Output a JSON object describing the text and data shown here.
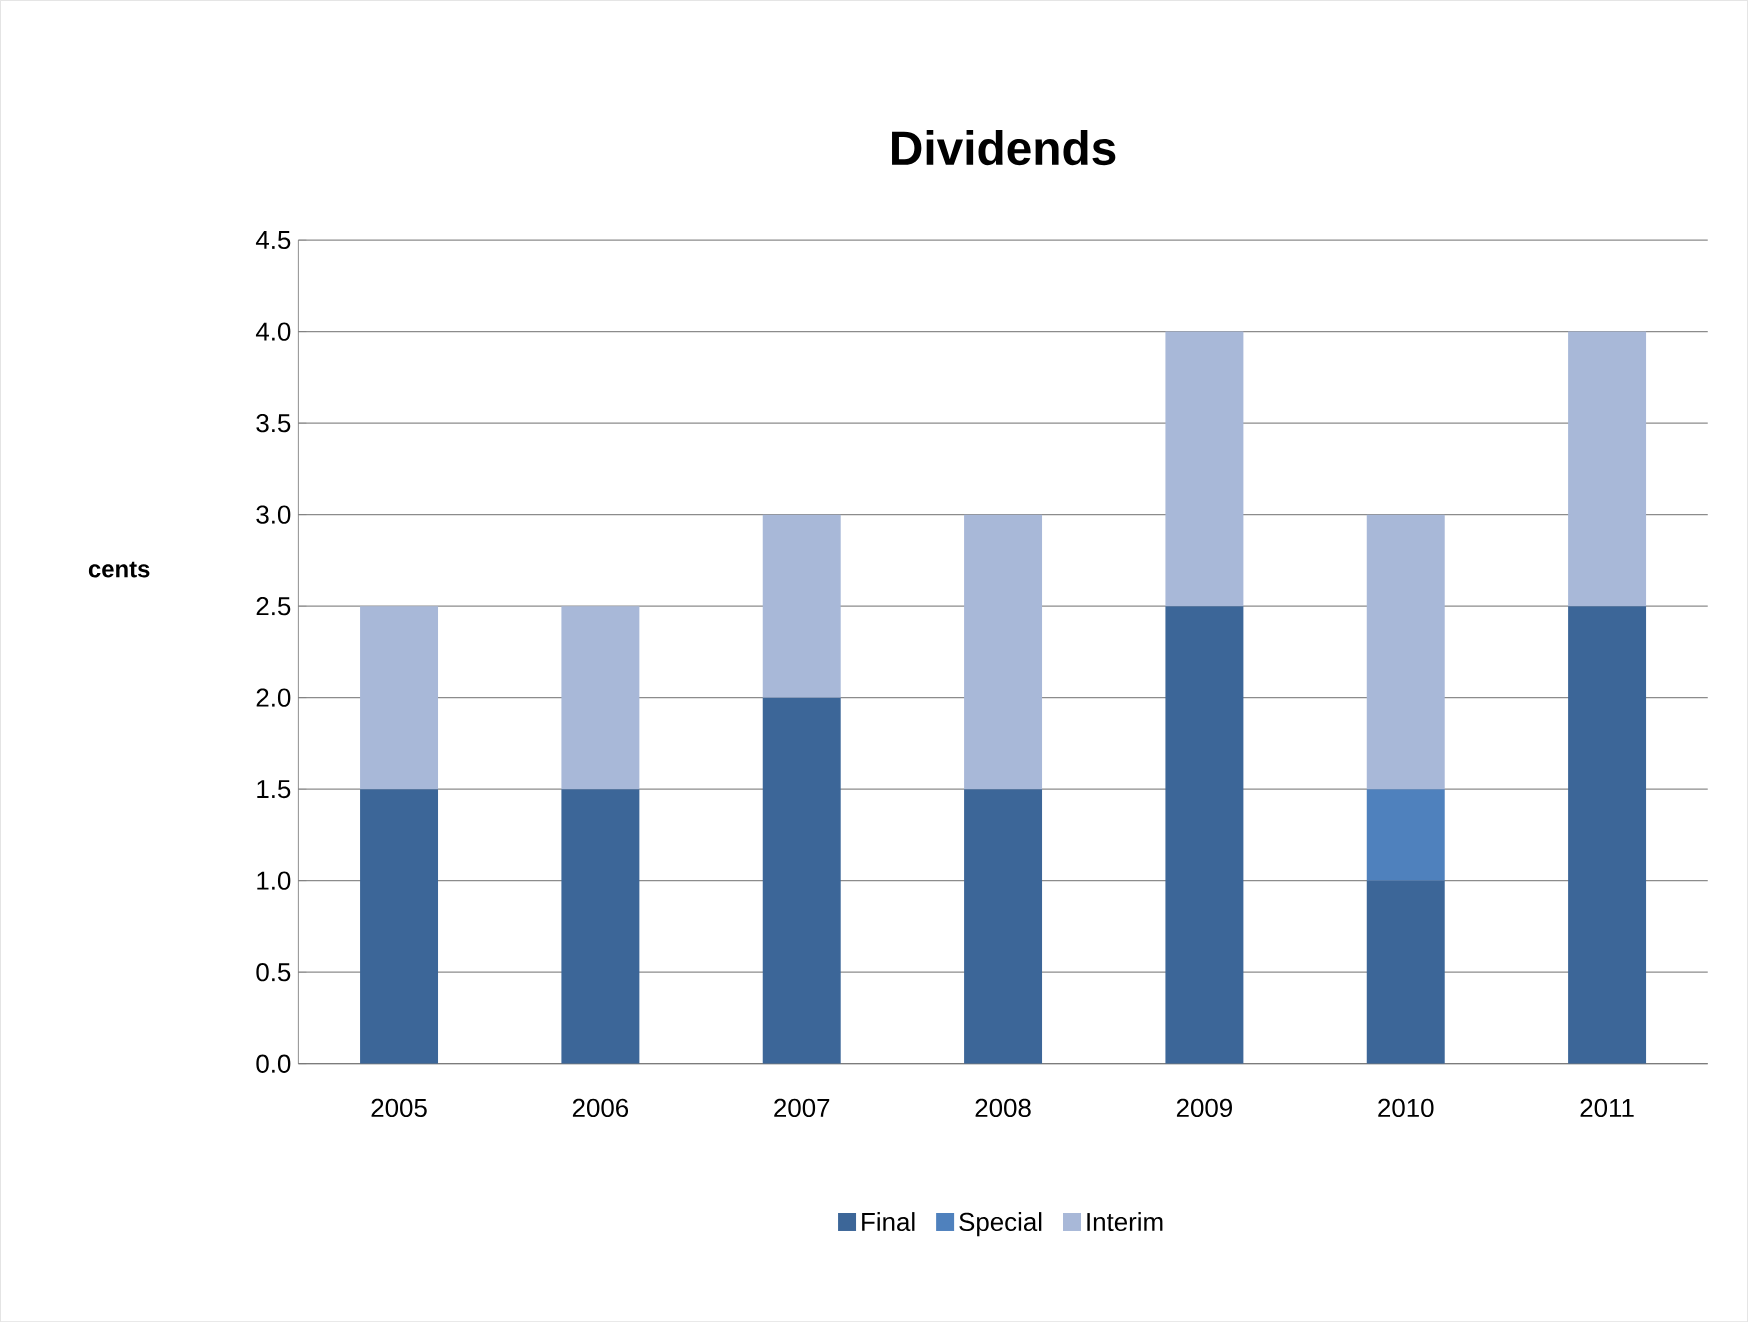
{
  "chart_data": {
    "type": "bar",
    "stacked": true,
    "title": "Dividends",
    "ylabel": "cents",
    "categories": [
      "2005",
      "2006",
      "2007",
      "2008",
      "2009",
      "2010",
      "2011"
    ],
    "series": [
      {
        "name": "Final",
        "color": "#3c6698",
        "values": [
          1.5,
          1.5,
          2,
          1.5,
          2.5,
          1,
          2.5
        ]
      },
      {
        "name": "Special",
        "color": "#4f81bd",
        "values": [
          0,
          0,
          0,
          0,
          0,
          0.5,
          0
        ]
      },
      {
        "name": "Interim",
        "color": "#a8b8d8",
        "values": [
          1,
          1,
          1,
          1.5,
          1.5,
          1.5,
          1.5
        ]
      }
    ],
    "ylim": [
      0,
      4.5
    ],
    "yticks": [
      {
        "value": 0,
        "label": "0.0"
      },
      {
        "value": 0.5,
        "label": "0.5"
      },
      {
        "value": 1,
        "label": "1.0"
      },
      {
        "value": 1.5,
        "label": "1.5"
      },
      {
        "value": 2,
        "label": "2.0"
      },
      {
        "value": 2.5,
        "label": "2.5"
      },
      {
        "value": 3,
        "label": "3.0"
      },
      {
        "value": 3.5,
        "label": "3.5"
      },
      {
        "value": 4,
        "label": "4.0"
      },
      {
        "value": 4.5,
        "label": "4.5"
      }
    ],
    "grid": "y",
    "legend": "bottom"
  }
}
